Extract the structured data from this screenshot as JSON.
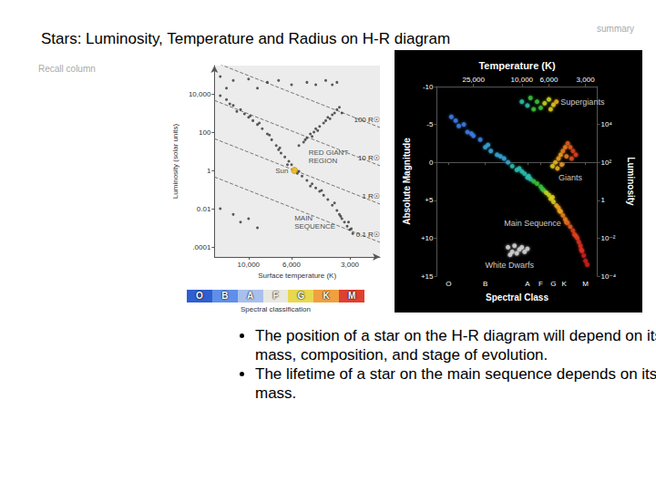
{
  "title": "Stars: Luminosity, Temperature and Radius on H-R diagram",
  "corner_label": "summary",
  "side_label": "Recall column",
  "bullets": [
    "The position of a star on the H-R diagram will depend on its mass, composition, and stage of evolution.",
    "The lifetime of a star on the main sequence depends on its mass."
  ],
  "chart_data": [
    {
      "type": "scatter",
      "log": true,
      "xlabel": "Surface temperature (K)",
      "ylabel": "Luminosity (solar units)",
      "xlim": [
        15000,
        2100
      ],
      "xticks": [
        {
          "value": 10000,
          "label": "10,000"
        },
        {
          "value": 6000,
          "label": "6,000"
        },
        {
          "value": 3000,
          "label": "3,000"
        }
      ],
      "ylim": [
        3e-05,
        300000
      ],
      "yticks": [
        {
          "value": 10000,
          "label": "10,000"
        },
        100,
        1,
        0.01,
        {
          "value": 0.0001,
          "label": ".0001"
        }
      ],
      "color": "#333333",
      "x": [
        14000,
        13000,
        12500,
        12000,
        11500,
        11000,
        10500,
        10000,
        9800,
        9500,
        9000,
        8800,
        8500,
        8000,
        7800,
        7600,
        7200,
        7000,
        6900,
        6800,
        6500,
        6300,
        6200,
        6000,
        5600,
        5500,
        5300,
        5000,
        4800,
        4700,
        4500,
        4300,
        4200,
        4100,
        3900,
        3700,
        3600,
        3500,
        3400,
        3350,
        3300,
        3200,
        3100,
        3050,
        3000,
        2950,
        2900,
        5500,
        5200,
        5100,
        5000,
        4800,
        4700,
        4600,
        4500,
        4400,
        4300,
        4100,
        4000,
        3900,
        3800,
        3700,
        3600,
        3500,
        3400,
        3300,
        14000,
        13000,
        12000,
        10000,
        9000,
        8000,
        7000,
        6000,
        5000,
        4500,
        4000,
        3700,
        3500,
        14000,
        12000,
        11000,
        10000,
        9000
      ],
      "values": [
        8000,
        5000,
        3000,
        2500,
        1200,
        1500,
        900,
        600,
        700,
        400,
        250,
        300,
        150,
        80,
        70,
        40,
        20,
        12,
        15,
        8,
        5,
        2,
        3,
        2,
        0.7,
        0.9,
        0.5,
        0.3,
        0.15,
        0.2,
        0.12,
        0.08,
        0.09,
        0.05,
        0.03,
        0.015,
        0.02,
        0.008,
        0.005,
        0.004,
        0.003,
        0.002,
        0.0012,
        0.002,
        0.0008,
        0.0009,
        0.0005,
        20,
        30,
        40,
        50,
        80,
        60,
        100,
        150,
        120,
        200,
        300,
        400,
        600,
        500,
        800,
        1000,
        1500,
        2000,
        1000,
        80000,
        20000,
        50000,
        60000,
        20000,
        40000,
        50000,
        30000,
        40000,
        30000,
        50000,
        30000,
        40000,
        0.01,
        0.005,
        0.002,
        0.003,
        0.001
      ],
      "radius_lines": [
        {
          "label": "100 R☉",
          "x": [
            15000,
            2100
          ],
          "values": [
            454200,
            174.5
          ]
        },
        {
          "label": "10 R☉",
          "x": [
            15000,
            2100
          ],
          "values": [
            4542,
            1.745
          ]
        },
        {
          "label": "1 R☉",
          "x": [
            15000,
            2100
          ],
          "values": [
            45.42,
            0.01745
          ]
        },
        {
          "label": "0.1 R☉",
          "x": [
            15000,
            2100
          ],
          "values": [
            0.4542,
            0.0001745
          ]
        }
      ],
      "annotations": [
        {
          "text": "RED GIANT\nREGION",
          "x": 4900,
          "y": 5
        },
        {
          "text": "MAIN\nSEQUENCE",
          "x": 5800,
          "y": 0.002
        }
      ],
      "sun": {
        "text": "Sun",
        "x": 5800,
        "y": 1,
        "color": "#f0b000"
      },
      "spectral_bar": {
        "label": "Spectral classification",
        "classes": [
          "O",
          "B",
          "A",
          "F",
          "G",
          "K",
          "M"
        ],
        "colors": [
          "#2f5fd0",
          "#5f8fe8",
          "#a8c0ee",
          "#e8e8e0",
          "#e8d850",
          "#f0a040",
          "#e04030"
        ]
      }
    },
    {
      "type": "scatter",
      "log": "x",
      "xlabel": "Spectral Class",
      "x2label": "Temperature (K)",
      "ylabel": "Absolute Magnitude",
      "y2label": "Luminosity",
      "xlim": [
        50000,
        2400
      ],
      "xticks": [
        {
          "value": 40000,
          "label": "O"
        },
        {
          "value": 20000,
          "label": "B"
        },
        {
          "value": 9000,
          "label": "A"
        },
        {
          "value": 7000,
          "label": "F"
        },
        {
          "value": 5500,
          "label": "G"
        },
        {
          "value": 4500,
          "label": "K"
        },
        {
          "value": 3000,
          "label": "M"
        }
      ],
      "x2lim": [
        50000,
        2400
      ],
      "x2ticks": [
        {
          "value": 25000,
          "label": "25,000"
        },
        {
          "value": 10000,
          "label": "10,000"
        },
        {
          "value": 6000,
          "label": "6,000"
        },
        {
          "value": 3000,
          "label": "3,000"
        }
      ],
      "ylim": [
        15,
        -10
      ],
      "yticks": [
        -10,
        -5,
        0,
        {
          "value": 5,
          "label": "+5"
        },
        {
          "value": 10,
          "label": "+10"
        },
        {
          "value": 15,
          "label": "+15"
        }
      ],
      "y2lim": [
        0.0001,
        1000000
      ],
      "y2ticks": [
        {
          "value": 10000,
          "label": "10⁴"
        },
        {
          "value": 100,
          "label": "10²"
        },
        1,
        {
          "value": 0.01,
          "label": "10⁻²"
        },
        {
          "value": 0.0001,
          "label": "10⁻⁴"
        }
      ],
      "series": [
        {
          "x": [
            10000,
            9000,
            8500,
            8000,
            7500,
            7000,
            6500,
            6000,
            5800,
            5500,
            5200
          ],
          "values": [
            -8,
            -7.5,
            -8.5,
            -7,
            -8,
            -7.2,
            -7.8,
            -8.3,
            -7,
            -7.6,
            -8
          ],
          "colors": [
            "#2ec0b0",
            "#2ec0b0",
            "#3cc43c",
            "#3cc43c",
            "#3cc43c",
            "#3cc43c",
            "#c8d820",
            "#c8d820",
            "#e0d020",
            "#e0d020",
            "#f0b020"
          ]
        },
        {
          "x": [
            5600,
            5300,
            5100,
            5000,
            4800,
            4700,
            4600,
            4400,
            4300,
            4200,
            4000,
            3900,
            3800,
            3600
          ],
          "values": [
            0.5,
            0,
            0.8,
            -0.5,
            -1,
            0.3,
            -1.5,
            -2,
            -0.8,
            -2.5,
            -2,
            -0.5,
            -1.5,
            -1
          ],
          "colors": [
            "#e0d020",
            "#f0b020",
            "#f0b020",
            "#f0a020",
            "#f0a020",
            "#f0a020",
            "#f08020",
            "#f08020",
            "#f08020",
            "#e06020",
            "#e06020",
            "#e05020",
            "#e04020",
            "#e04020"
          ]
        },
        {
          "x": [
            38000,
            35000,
            33000,
            30000,
            28000,
            26000,
            25000,
            22000,
            20000,
            19000,
            18000,
            16000,
            15000,
            14000,
            13000,
            12000,
            11000,
            10500,
            10000,
            9500,
            9000,
            8800,
            8500,
            8000,
            7500,
            7000,
            6800,
            6600,
            6300,
            6000,
            5800,
            5600,
            5500,
            5200,
            5000,
            4900,
            4800,
            4600,
            4400,
            4300,
            4200,
            4000,
            3800,
            3700,
            3600,
            3500,
            3400,
            3300,
            3250,
            3200,
            3100,
            3000,
            2900
          ],
          "values": [
            -6,
            -5.5,
            -4.8,
            -5,
            -4,
            -3.8,
            -3.5,
            -3,
            -2,
            -2.3,
            -1.5,
            -1,
            -0.8,
            -0.5,
            0,
            0.5,
            1,
            0.8,
            1.2,
            1.5,
            2,
            1.8,
            2.2,
            2.5,
            2.8,
            3.2,
            3.5,
            3.7,
            4,
            4.3,
            4.8,
            4.6,
            5.2,
            5.7,
            6,
            6.4,
            6.5,
            7,
            7.5,
            7.9,
            8,
            8.5,
            9,
            9.5,
            9.7,
            10,
            10.5,
            11,
            11.5,
            11.7,
            12.3,
            13,
            13.5
          ],
          "colors": [
            "#3f7fe8",
            "#3f7fe8",
            "#3f7fe8",
            "#3f7fe8",
            "#3f7fe8",
            "#3f7fe8",
            "#3f7fe8",
            "#3f7fe8",
            "#38a8d8",
            "#38a8d8",
            "#38a8d8",
            "#38a8d8",
            "#38a8d8",
            "#38a8d8",
            "#38a8d8",
            "#2ec0b0",
            "#2ec0b0",
            "#2ec0b0",
            "#2ec0b0",
            "#2ec0b0",
            "#2ec0b0",
            "#2ec0b0",
            "#2ec0b0",
            "#3cc43c",
            "#3cc43c",
            "#3cc43c",
            "#3cc43c",
            "#3cc43c",
            "#c8d820",
            "#c8d820",
            "#e0d020",
            "#e0d020",
            "#e0d020",
            "#f0b020",
            "#f0a020",
            "#f0a020",
            "#f0a020",
            "#f08020",
            "#f08020",
            "#f08020",
            "#e06020",
            "#e06020",
            "#e04020",
            "#e04020",
            "#e04020",
            "#e04020",
            "#e03020",
            "#e03020",
            "#e03020",
            "#e03020",
            "#d02020",
            "#d02020",
            "#d02020"
          ]
        },
        {
          "x": [
            13000,
            12500,
            12000,
            11500,
            11000,
            10500,
            10000,
            9500,
            9000
          ],
          "values": [
            11.2,
            12.2,
            11.8,
            11,
            12,
            11.5,
            11.2,
            11.8,
            11.4
          ],
          "color": "#d8d8d8"
        }
      ],
      "annotations": [
        {
          "text": "Supergiants",
          "x": 4800,
          "y": -8
        },
        {
          "text": "Giants",
          "x": 5000,
          "y": 2
        },
        {
          "text": "Main Sequence",
          "x": 14000,
          "y": 8
        },
        {
          "text": "White Dwarfs",
          "x": 20000,
          "y": 13.5
        }
      ]
    }
  ]
}
